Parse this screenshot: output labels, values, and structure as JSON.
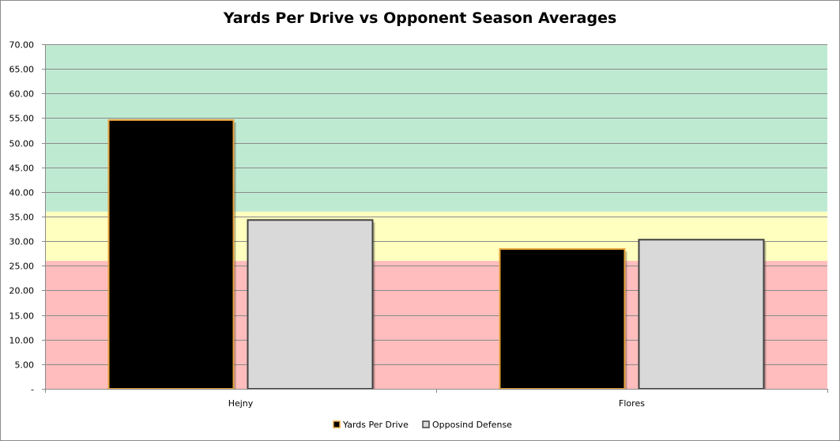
{
  "chart_data": {
    "type": "bar",
    "title": "Yards Per Drive vs Opponent Season Averages",
    "categories": [
      "Hejny",
      "Flores"
    ],
    "series": [
      {
        "name": "Yards Per Drive",
        "values": [
          54.6,
          28.4
        ],
        "color": "#000000",
        "border": "#e8a33c"
      },
      {
        "name": "Opposind Defense",
        "values": [
          34.3,
          30.3
        ],
        "color": "#d9d9d9",
        "border": "#404040"
      }
    ],
    "ylim": [
      0,
      70
    ],
    "y_tick_step": 5,
    "y_tick_labels": [
      "-",
      "5.00",
      "10.00",
      "15.00",
      "20.00",
      "25.00",
      "30.00",
      "35.00",
      "40.00",
      "45.00",
      "50.00",
      "55.00",
      "60.00",
      "65.00",
      "70.00"
    ],
    "background_bands": [
      {
        "from": 0,
        "to": 26,
        "color": "#ffbdbd"
      },
      {
        "from": 26,
        "to": 36,
        "color": "#ffffbf"
      },
      {
        "from": 36,
        "to": 70,
        "color": "#bfead2"
      }
    ],
    "grid": true,
    "legend": "bottom"
  }
}
